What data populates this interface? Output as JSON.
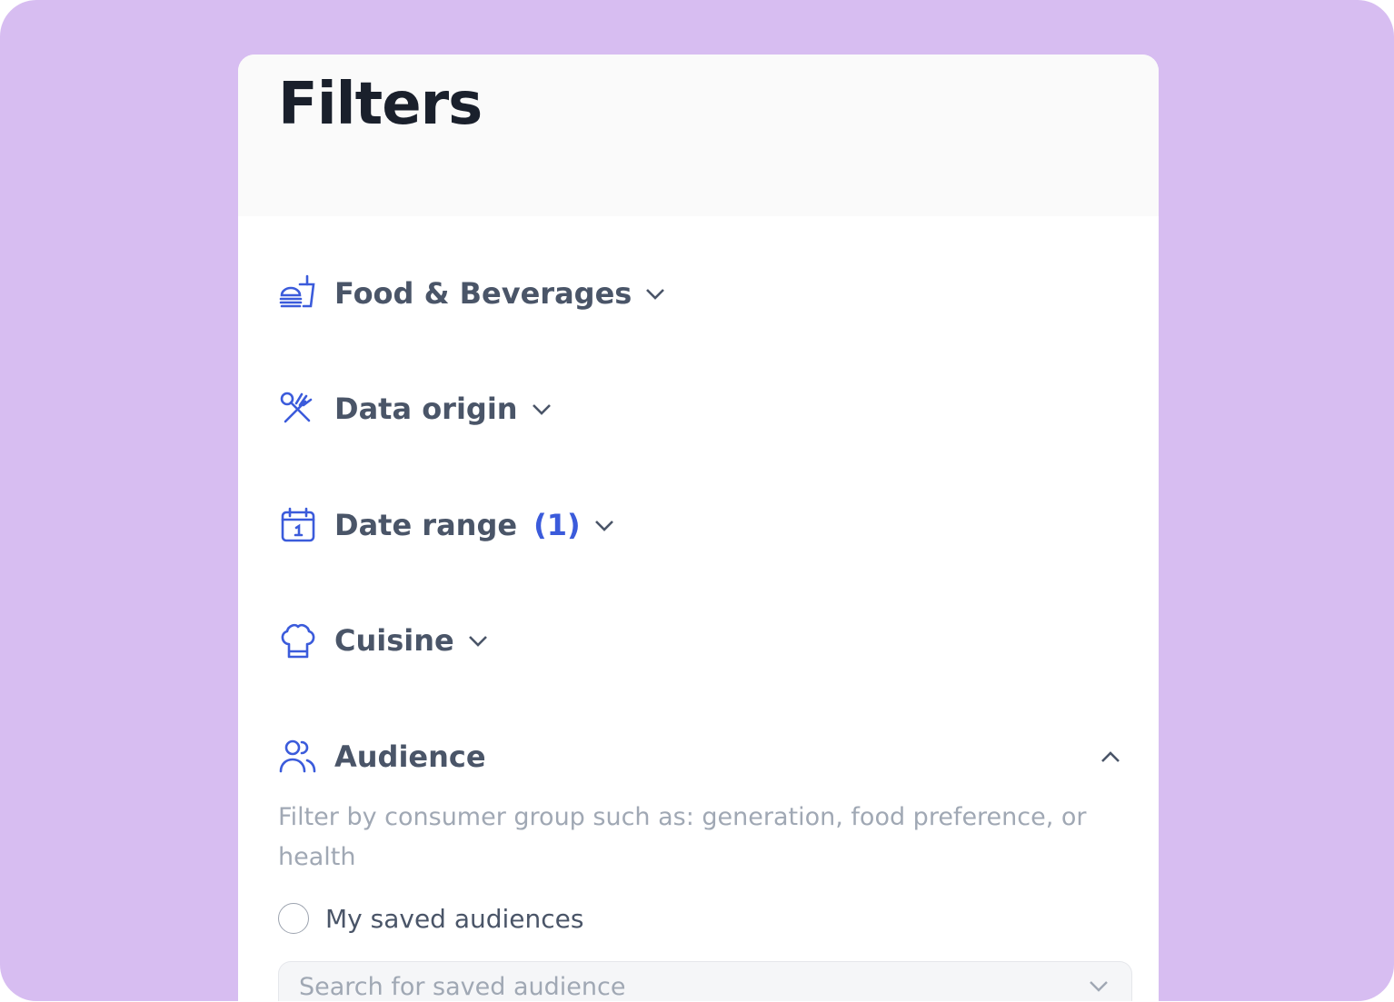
{
  "header": {
    "title": "Filters"
  },
  "filters": [
    {
      "label": "Food & Beverages",
      "icon": "food-beverage-icon"
    },
    {
      "label": "Data origin",
      "icon": "fork-spoon-icon"
    },
    {
      "label": "Date range",
      "count": "(1)",
      "icon": "calendar-icon"
    },
    {
      "label": "Cuisine",
      "icon": "chef-hat-icon"
    },
    {
      "label": "Audience",
      "icon": "users-icon",
      "expanded": true
    }
  ],
  "audience": {
    "description": "Filter by consumer group such as: generation, food preference, or health",
    "saved_option": "My saved audiences",
    "search_placeholder": "Search for saved audience"
  },
  "colors": {
    "accent": "#3B5BDB",
    "background": "#D7BDF1"
  }
}
